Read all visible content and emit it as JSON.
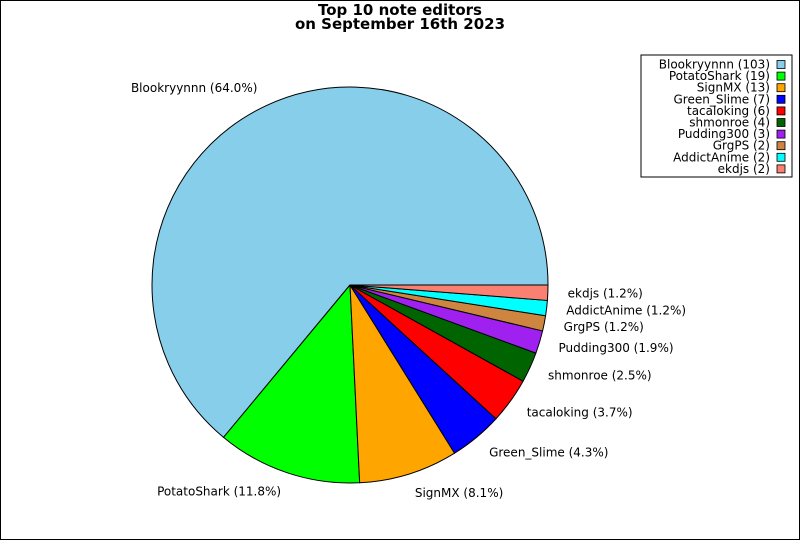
{
  "chart_data": {
    "type": "pie",
    "title_line1": "Top 10 note editors",
    "title_line2": "on September 16th 2023",
    "legend_position": "top-right",
    "slices": [
      {
        "name": "Blookryynnn",
        "count": 103,
        "percent": 64.0,
        "legend": "Blookryynnn (103)",
        "label": "Blookryynnn (64.0%)",
        "color": "#87CEEB"
      },
      {
        "name": "PotatoShark",
        "count": 19,
        "percent": 11.8,
        "legend": "PotatoShark (19)",
        "label": "PotatoShark (11.8%)",
        "color": "#00FF00"
      },
      {
        "name": "SignMX",
        "count": 13,
        "percent": 8.1,
        "legend": "SignMX (13)",
        "label": "SignMX (8.1%)",
        "color": "#FFA500"
      },
      {
        "name": "Green_Slime",
        "count": 7,
        "percent": 4.3,
        "legend": "Green_Slime (7)",
        "label": "Green_Slime (4.3%)",
        "color": "#0000FF"
      },
      {
        "name": "tacaloking",
        "count": 6,
        "percent": 3.7,
        "legend": "tacaloking (6)",
        "label": "tacaloking (3.7%)",
        "color": "#FF0000"
      },
      {
        "name": "shmonroe",
        "count": 4,
        "percent": 2.5,
        "legend": "shmonroe (4)",
        "label": "shmonroe (2.5%)",
        "color": "#006400"
      },
      {
        "name": "Pudding300",
        "count": 3,
        "percent": 1.9,
        "legend": "Pudding300 (3)",
        "label": "Pudding300 (1.9%)",
        "color": "#A020F0"
      },
      {
        "name": "GrgPS",
        "count": 2,
        "percent": 1.2,
        "legend": "GrgPS (2)",
        "label": "GrgPS (1.2%)",
        "color": "#CD853F"
      },
      {
        "name": "AddictAnime",
        "count": 2,
        "percent": 1.2,
        "legend": "AddictAnime (2)",
        "label": "AddictAnime (1.2%)",
        "color": "#00FFFF"
      },
      {
        "name": "ekdjs",
        "count": 2,
        "percent": 1.2,
        "legend": "ekdjs (2)",
        "label": "ekdjs (1.2%)",
        "color": "#FA8072"
      }
    ]
  }
}
